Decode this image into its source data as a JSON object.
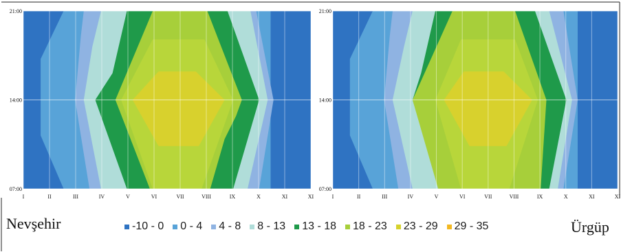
{
  "chart_data": [
    {
      "type": "contour",
      "station": "Nevşehir",
      "x_categories": [
        "I",
        "II",
        "III",
        "IV",
        "V",
        "VI",
        "VII",
        "VIII",
        "IX",
        "X",
        "XI",
        "XI"
      ],
      "y_ticks": [
        "07:00",
        "14:00",
        "21:00"
      ],
      "classes": [
        {
          "label": "-10 - 0",
          "color": "#2f73c2"
        },
        {
          "label": "0 - 4",
          "color": "#58a3d8"
        },
        {
          "label": "4 - 8",
          "color": "#8fb3e2"
        },
        {
          "label": "8 - 13",
          "color": "#b0ddd9"
        },
        {
          "label": "13 - 18",
          "color": "#1f9a4a"
        },
        {
          "label": "18 - 23",
          "color": "#a7cf3a"
        },
        {
          "label": "23 - 29",
          "color": "#d6d22c"
        },
        {
          "label": "29 - 35",
          "color": "#f3b821"
        }
      ],
      "grid": true
    },
    {
      "type": "contour",
      "station": "Ürgüp",
      "x_categories": [
        "I",
        "II",
        "III",
        "IV",
        "V",
        "VI",
        "VII",
        "VIII",
        "IX",
        "X",
        "XI",
        "XI"
      ],
      "y_ticks": [
        "07:00",
        "14:00",
        "21:00"
      ],
      "classes": [
        {
          "label": "-10 - 0",
          "color": "#2f73c2"
        },
        {
          "label": "0 - 4",
          "color": "#58a3d8"
        },
        {
          "label": "4 - 8",
          "color": "#8fb3e2"
        },
        {
          "label": "8 - 13",
          "color": "#b0ddd9"
        },
        {
          "label": "13 - 18",
          "color": "#1f9a4a"
        },
        {
          "label": "18 - 23",
          "color": "#a7cf3a"
        },
        {
          "label": "23 - 29",
          "color": "#d6d22c"
        },
        {
          "label": "29 - 35",
          "color": "#f3b821"
        }
      ],
      "grid": true
    }
  ],
  "legend": [
    {
      "label": "-10 - 0",
      "color": "#2f73c2"
    },
    {
      "label": "0 - 4",
      "color": "#58a3d8"
    },
    {
      "label": "4 - 8",
      "color": "#8fb3e2"
    },
    {
      "label": "8 - 13",
      "color": "#b0ddd9"
    },
    {
      "label": "13 - 18",
      "color": "#1f9a4a"
    },
    {
      "label": "18 - 23",
      "color": "#a7cf3a"
    },
    {
      "label": "23 - 29",
      "color": "#d6d22c"
    },
    {
      "label": "29 - 35",
      "color": "#f3b821"
    }
  ],
  "station_left": "Nevşehir",
  "station_right": "Ürgüp"
}
